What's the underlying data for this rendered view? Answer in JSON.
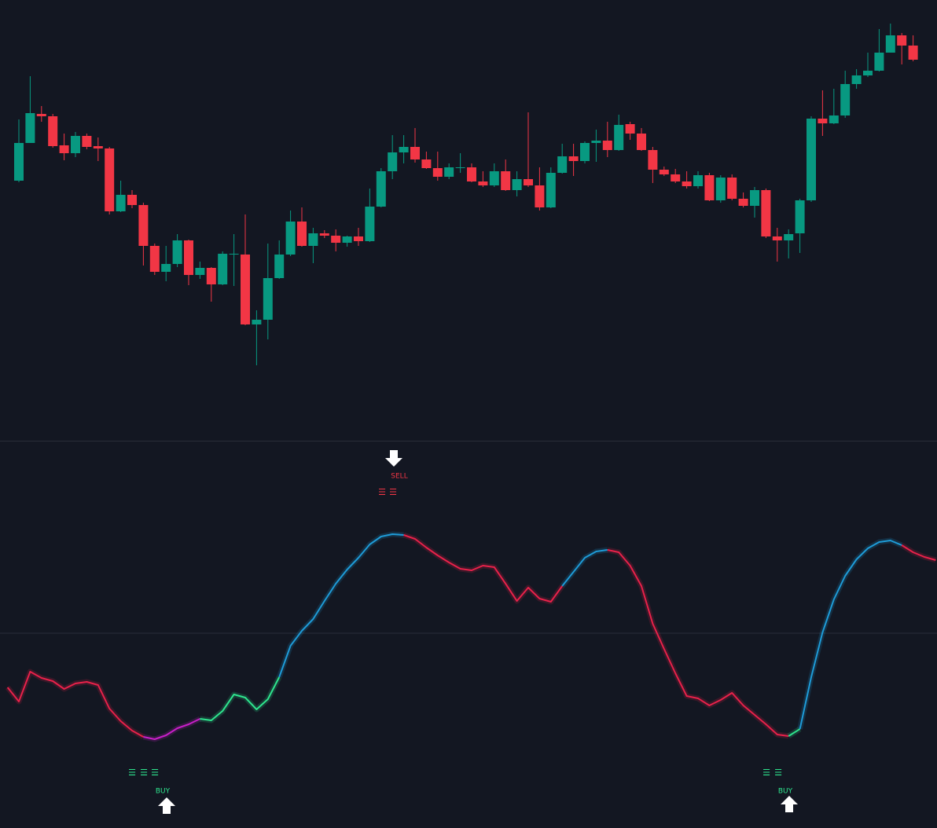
{
  "chart_data": [
    {
      "type": "candlestick",
      "ylim": [
        0,
        560
      ],
      "up_color": "#089981",
      "down_color": "#f23645",
      "open": [
        330,
        378,
        415,
        412,
        375,
        365,
        387,
        374,
        371,
        291,
        312,
        299,
        247,
        214,
        224,
        254,
        210,
        219,
        198,
        236,
        236,
        147,
        153,
        206,
        236,
        278,
        247,
        263,
        260,
        251,
        259,
        253,
        297,
        342,
        366,
        373,
        357,
        346,
        335,
        346,
        347,
        329,
        324,
        342,
        318,
        332,
        324,
        296,
        340,
        361,
        355,
        378,
        381,
        369,
        402,
        390,
        369,
        344,
        338,
        329,
        323,
        337,
        305,
        334,
        307,
        298,
        318,
        259,
        254,
        263,
        305,
        409,
        403,
        413,
        453,
        464,
        470,
        493,
        515,
        502
      ],
      "high": [
        408,
        463,
        425,
        415,
        390,
        392,
        390,
        385,
        373,
        330,
        318,
        302,
        250,
        247,
        262,
        255,
        227,
        220,
        240,
        262,
        287,
        165,
        250,
        254,
        292,
        296,
        270,
        267,
        268,
        260,
        270,
        320,
        346,
        388,
        388,
        397,
        367,
        367,
        352,
        365,
        352,
        342,
        352,
        357,
        342,
        417,
        347,
        347,
        377,
        377,
        380,
        395,
        405,
        414,
        405,
        397,
        373,
        348,
        345,
        342,
        342,
        340,
        337,
        338,
        315,
        322,
        320,
        270,
        268,
        307,
        412,
        445,
        447,
        470,
        472,
        493,
        523,
        530,
        518,
        515
      ],
      "low": [
        328,
        378,
        405,
        372,
        356,
        360,
        370,
        355,
        287,
        290,
        295,
        222,
        210,
        202,
        220,
        197,
        205,
        176,
        197,
        196,
        146,
        95,
        128,
        205,
        234,
        246,
        225,
        257,
        240,
        246,
        247,
        252,
        296,
        332,
        352,
        353,
        345,
        330,
        332,
        340,
        328,
        322,
        322,
        317,
        310,
        322,
        292,
        295,
        339,
        336,
        352,
        354,
        360,
        368,
        382,
        368,
        327,
        336,
        327,
        320,
        320,
        304,
        302,
        305,
        296,
        283,
        257,
        227,
        231,
        238,
        303,
        387,
        402,
        410,
        447,
        462,
        469,
        493,
        478,
        482
      ],
      "close": [
        378,
        416,
        412,
        374,
        365,
        387,
        373,
        371,
        291,
        312,
        299,
        247,
        214,
        224,
        254,
        210,
        219,
        198,
        237,
        237,
        147,
        153,
        206,
        236,
        278,
        247,
        263,
        260,
        251,
        259,
        253,
        297,
        342,
        366,
        373,
        357,
        346,
        335,
        347,
        347,
        329,
        324,
        342,
        318,
        332,
        324,
        296,
        340,
        361,
        355,
        378,
        381,
        369,
        401,
        390,
        369,
        344,
        338,
        329,
        323,
        337,
        305,
        334,
        307,
        298,
        318,
        259,
        254,
        262,
        305,
        409,
        403,
        413,
        453,
        464,
        470,
        493,
        515,
        502,
        484
      ]
    },
    {
      "type": "line",
      "ylim": [
        -248,
        244
      ],
      "hline": 0,
      "x": [
        -1,
        0,
        1,
        2,
        3,
        4,
        5,
        6,
        7,
        8,
        9,
        10,
        11,
        12,
        13,
        14,
        15,
        16,
        17,
        18,
        19,
        20,
        21,
        22,
        23,
        24,
        25,
        26,
        27,
        28,
        29,
        30,
        31,
        32,
        33,
        34,
        35,
        36,
        37,
        38,
        39,
        40,
        41,
        42,
        43,
        44,
        45,
        46,
        47,
        48,
        49,
        50,
        51,
        52,
        53,
        54,
        55,
        56,
        57,
        58,
        59,
        60,
        61,
        62,
        63,
        64,
        65,
        66,
        67,
        68,
        69,
        70,
        71,
        72,
        73,
        74,
        75,
        76,
        77,
        78,
        79,
        80,
        81
      ],
      "values": [
        -69,
        -87,
        -49,
        -57,
        -61,
        -71,
        -64,
        -62,
        -66,
        -96,
        -112,
        -124,
        -132,
        -135,
        -130,
        -121,
        -116,
        -109,
        -111,
        -99,
        -78,
        -82,
        -97,
        -84,
        -56,
        -16,
        3,
        18,
        41,
        63,
        81,
        96,
        113,
        123,
        126,
        125,
        120,
        109,
        99,
        90,
        82,
        80,
        86,
        84,
        63,
        41,
        58,
        44,
        40,
        60,
        78,
        96,
        104,
        106,
        103,
        86,
        60,
        12,
        -20,
        -51,
        -80,
        -83,
        -92,
        -85,
        -76,
        -92,
        -104,
        -116,
        -129,
        -131,
        -122,
        -56,
        1,
        43,
        73,
        94,
        108,
        116,
        118,
        112,
        103,
        97,
        93
      ],
      "colors": [
        "#e8214a",
        "#e8214a",
        "#e8214a",
        "#e8214a",
        "#e8214a",
        "#e8214a",
        "#e8214a",
        "#e8214a",
        "#e8214a",
        "#e8214a",
        "#e8214a",
        "#e8214a",
        "#e8214a",
        "#c81fc8",
        "#c81fc8",
        "#c81fc8",
        "#c81fc8",
        "#c81fc8",
        "#2ee58e",
        "#2ee58e",
        "#2ee58e",
        "#2ee58e",
        "#2ee58e",
        "#2ee58e",
        "#2ee58e",
        "#1e9bd7",
        "#1e9bd7",
        "#1e9bd7",
        "#1e9bd7",
        "#1e9bd7",
        "#1e9bd7",
        "#1e9bd7",
        "#1e9bd7",
        "#1e9bd7",
        "#1e9bd7",
        "#1e9bd7",
        "#e8214a",
        "#e8214a",
        "#e8214a",
        "#e8214a",
        "#e8214a",
        "#e8214a",
        "#e8214a",
        "#e8214a",
        "#e8214a",
        "#e8214a",
        "#e8214a",
        "#e8214a",
        "#e8214a",
        "#e8214a",
        "#1e9bd7",
        "#1e9bd7",
        "#1e9bd7",
        "#1e9bd7",
        "#e8214a",
        "#e8214a",
        "#e8214a",
        "#e8214a",
        "#e8214a",
        "#e8214a",
        "#e8214a",
        "#e8214a",
        "#e8214a",
        "#e8214a",
        "#e8214a",
        "#e8214a",
        "#e8214a",
        "#e8214a",
        "#e8214a",
        "#e8214a",
        "#2ee58e",
        "#1e9bd7",
        "#1e9bd7",
        "#1e9bd7",
        "#1e9bd7",
        "#1e9bd7",
        "#1e9bd7",
        "#1e9bd7",
        "#1e9bd7",
        "#1e9bd7",
        "#e8214a",
        "#e8214a",
        "#e8214a"
      ],
      "signals": [
        {
          "label": "SELL",
          "color": "#f23645",
          "marks": [
            "☰",
            "☰"
          ]
        },
        {
          "label": "BUY",
          "color": "#2ee58e",
          "marks": [
            "☰",
            "☰",
            "☰"
          ]
        },
        {
          "label": "BUY",
          "color": "#2ee58e",
          "marks": [
            "☰",
            "☰"
          ]
        }
      ]
    }
  ]
}
